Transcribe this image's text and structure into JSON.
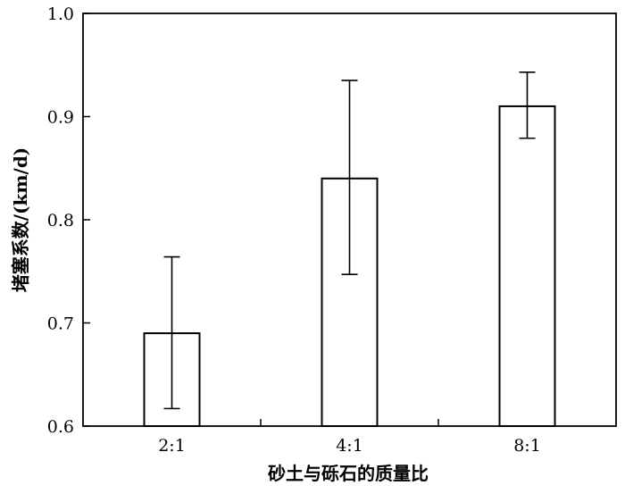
{
  "chart_data": {
    "type": "bar",
    "title": "",
    "xlabel": "砂土与砾石的质量比",
    "ylabel": "堵塞系数/(km/d)",
    "categories": [
      "2:1",
      "4:1",
      "8:1"
    ],
    "values": [
      0.69,
      0.84,
      0.91
    ],
    "error_low": [
      0.617,
      0.747,
      0.879
    ],
    "error_high": [
      0.764,
      0.935,
      0.943
    ],
    "ylim": [
      0.6,
      1.0
    ],
    "yticks": [
      "0.6",
      "0.7",
      "0.8",
      "0.9",
      "1.0"
    ],
    "grid": false,
    "legend": "none",
    "bar_fill": "#ffffff",
    "stroke_color": "#000000"
  }
}
